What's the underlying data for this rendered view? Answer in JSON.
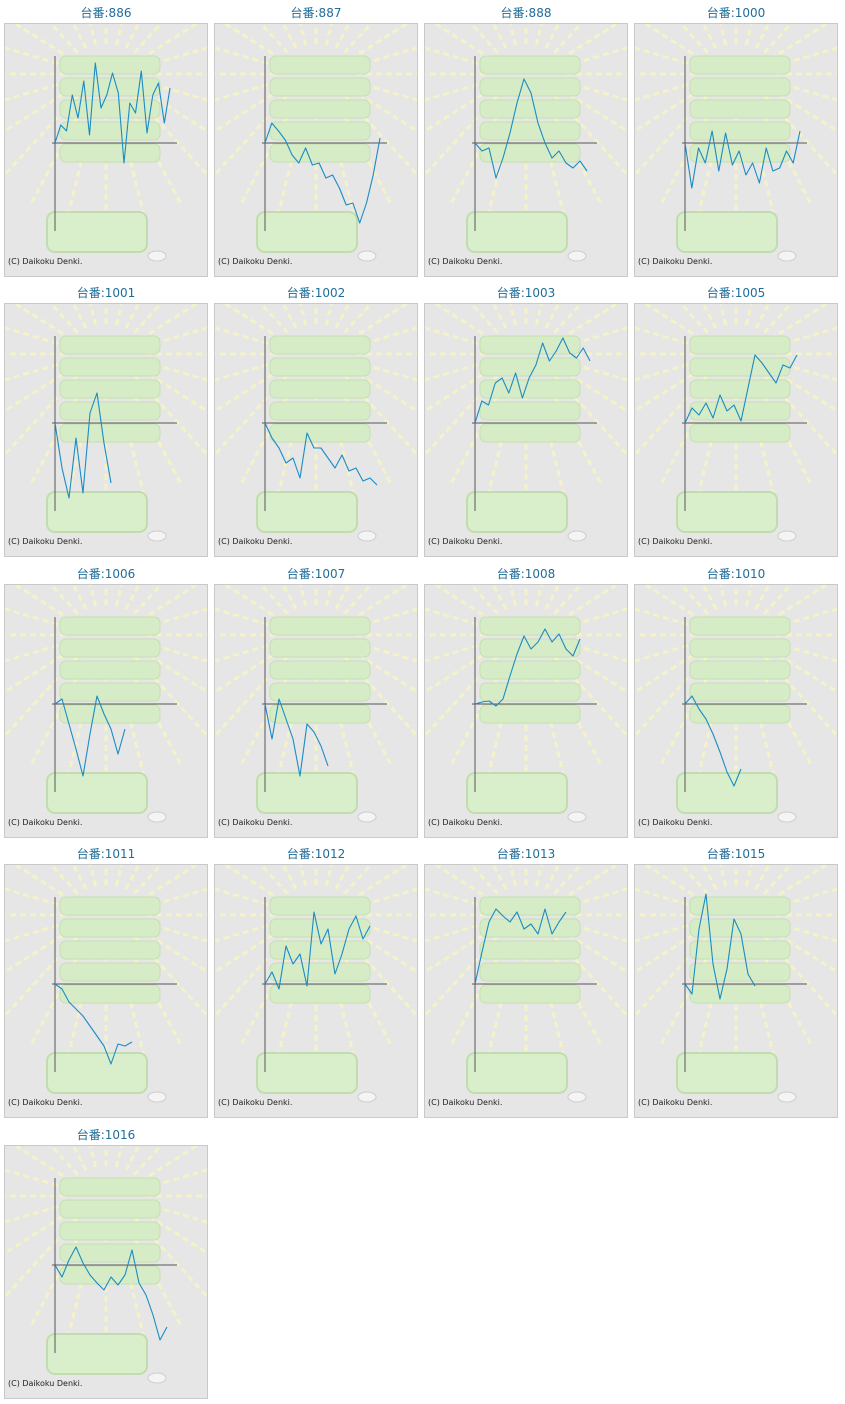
{
  "colors": {
    "line": "#1a8cc4",
    "axis": "#555555",
    "title": "#1f6d99",
    "panel_bg": "#e6e6e6"
  },
  "chart_data": [
    {
      "type": "line",
      "title": "台番:886",
      "credit": "(C) Daikoku Denki.",
      "values": [
        0,
        18,
        12,
        48,
        25,
        62,
        8,
        80,
        35,
        48,
        70,
        50,
        -20,
        40,
        30,
        72,
        10,
        48,
        60,
        20,
        55
      ]
    },
    {
      "type": "line",
      "title": "台番:887",
      "credit": "(C) Daikoku Denki.",
      "values": [
        0,
        20,
        12,
        3,
        -12,
        -20,
        -5,
        -22,
        -20,
        -35,
        -32,
        -45,
        -62,
        -60,
        -80,
        -60,
        -32,
        5
      ]
    },
    {
      "type": "line",
      "title": "台番:888",
      "credit": "(C) Daikoku Denki.",
      "values": [
        0,
        -8,
        -5,
        -35,
        -15,
        10,
        40,
        64,
        50,
        20,
        0,
        -15,
        -8,
        -20,
        -25,
        -18,
        -28
      ]
    },
    {
      "type": "line",
      "title": "台番:1000",
      "credit": "(C) Daikoku Denki.",
      "values": [
        0,
        -45,
        -5,
        -20,
        12,
        -28,
        10,
        -22,
        -8,
        -32,
        -20,
        -40,
        -5,
        -28,
        -25,
        -8,
        -20,
        12
      ]
    },
    {
      "type": "line",
      "title": "台番:1001",
      "credit": "(C) Daikoku Denki.",
      "values": [
        0,
        -45,
        -75,
        -15,
        -70,
        10,
        30,
        -20,
        -60
      ]
    },
    {
      "type": "line",
      "title": "台番:1002",
      "credit": "(C) Daikoku Denki.",
      "values": [
        0,
        -15,
        -25,
        -40,
        -35,
        -55,
        -10,
        -25,
        -25,
        -35,
        -45,
        -32,
        -48,
        -45,
        -58,
        -55,
        -62
      ]
    },
    {
      "type": "line",
      "title": "台番:1003",
      "credit": "(C) Daikoku Denki.",
      "values": [
        0,
        22,
        18,
        40,
        45,
        30,
        50,
        25,
        45,
        58,
        80,
        62,
        72,
        85,
        70,
        65,
        75,
        62
      ]
    },
    {
      "type": "line",
      "title": "台番:1005",
      "credit": "(C) Daikoku Denki.",
      "values": [
        0,
        15,
        8,
        20,
        5,
        28,
        12,
        18,
        2,
        35,
        68,
        60,
        50,
        40,
        58,
        55,
        68
      ]
    },
    {
      "type": "line",
      "title": "台番:1006",
      "credit": "(C) Daikoku Denki.",
      "values": [
        0,
        5,
        -20,
        -45,
        -72,
        -30,
        8,
        -10,
        -25,
        -50,
        -25
      ]
    },
    {
      "type": "line",
      "title": "台番:1007",
      "credit": "(C) Daikoku Denki.",
      "values": [
        0,
        -35,
        5,
        -15,
        -35,
        -72,
        -20,
        -28,
        -42,
        -62
      ]
    },
    {
      "type": "line",
      "title": "台番:1008",
      "credit": "(C) Daikoku Denki.",
      "values": [
        0,
        2,
        3,
        -2,
        5,
        28,
        50,
        68,
        55,
        62,
        75,
        62,
        70,
        55,
        48,
        65
      ]
    },
    {
      "type": "line",
      "title": "台番:1010",
      "credit": "(C) Daikoku Denki.",
      "values": [
        0,
        8,
        -5,
        -15,
        -30,
        -48,
        -68,
        -82,
        -65
      ]
    },
    {
      "type": "line",
      "title": "台番:1011",
      "credit": "(C) Daikoku Denki.",
      "values": [
        0,
        -5,
        -18,
        -25,
        -32,
        -42,
        -52,
        -62,
        -80,
        -60,
        -62,
        -58
      ]
    },
    {
      "type": "line",
      "title": "台番:1012",
      "credit": "(C) Daikoku Denki.",
      "values": [
        0,
        12,
        -5,
        38,
        20,
        30,
        -2,
        72,
        40,
        55,
        10,
        30,
        55,
        68,
        45,
        58
      ]
    },
    {
      "type": "line",
      "title": "台番:1013",
      "credit": "(C) Daikoku Denki.",
      "values": [
        0,
        32,
        62,
        75,
        68,
        62,
        72,
        55,
        60,
        50,
        75,
        50,
        62,
        72
      ]
    },
    {
      "type": "line",
      "title": "台番:1015",
      "credit": "(C) Daikoku Denki.",
      "values": [
        0,
        -10,
        55,
        90,
        20,
        -15,
        15,
        65,
        50,
        10,
        -2
      ]
    },
    {
      "type": "line",
      "title": "台番:1016",
      "credit": "(C) Daikoku Denki.",
      "values": [
        0,
        -12,
        5,
        18,
        2,
        -10,
        -18,
        -25,
        -12,
        -20,
        -10,
        15,
        -18,
        -30,
        -50,
        -75,
        -62
      ]
    }
  ]
}
